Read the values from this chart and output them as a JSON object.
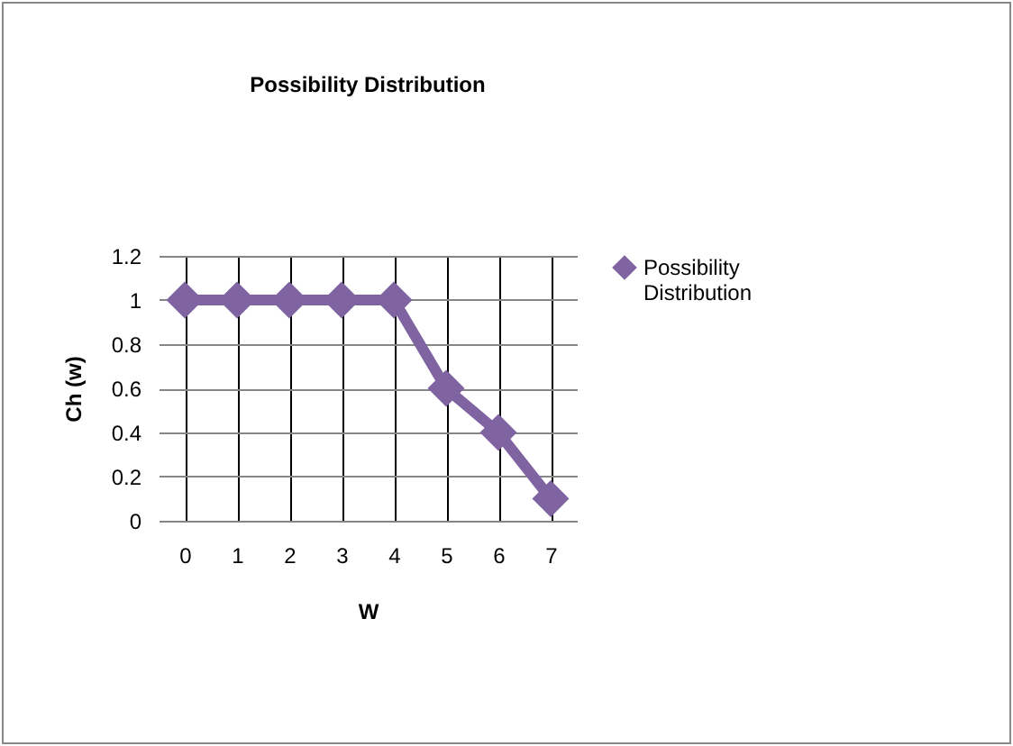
{
  "chart_data": {
    "type": "line",
    "title": "Possibility Distribution",
    "xlabel": "W",
    "ylabel": "Ch (w)",
    "categories": [
      "0",
      "1",
      "2",
      "3",
      "4",
      "5",
      "6",
      "7"
    ],
    "series": [
      {
        "name": "Possibility Distribution",
        "color": "#8064a2",
        "values": [
          1,
          1,
          1,
          1,
          1,
          0.6,
          0.4,
          0.1
        ]
      }
    ],
    "ylim": [
      0,
      1.2
    ],
    "yticks": [
      0,
      0.2,
      0.4,
      0.6,
      0.8,
      1,
      1.2
    ],
    "grid": true,
    "legend": "right",
    "marker": "diamond",
    "line_style": "solid"
  }
}
